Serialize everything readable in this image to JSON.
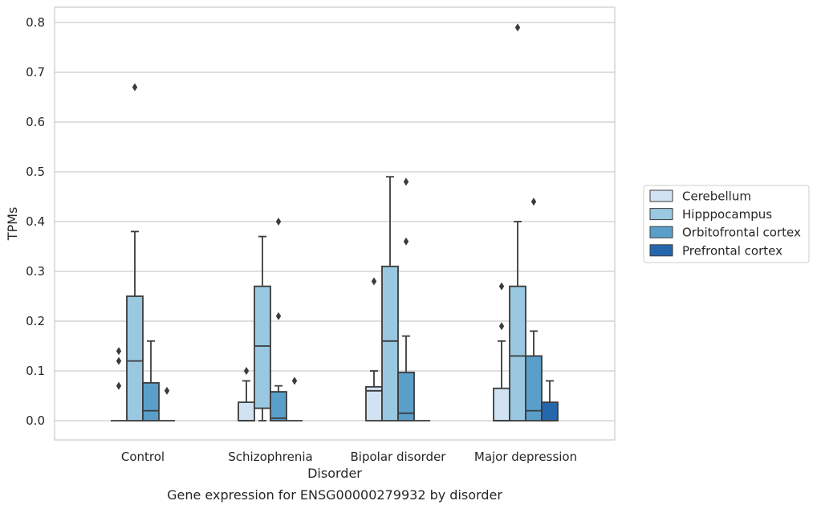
{
  "chart_data": {
    "type": "box",
    "title": "",
    "caption": "Gene expression for ENSG00000279932 by disorder",
    "xlabel": "Disorder",
    "ylabel": "TPMs",
    "ylim": [
      -0.04,
      0.83
    ],
    "yticks": [
      0.0,
      0.1,
      0.2,
      0.3,
      0.4,
      0.5,
      0.6,
      0.7,
      0.8
    ],
    "ytick_labels": [
      "0.0",
      "0.1",
      "0.2",
      "0.3",
      "0.4",
      "0.5",
      "0.6",
      "0.7",
      "0.8"
    ],
    "grid": "horizontal",
    "legend_position": "right",
    "categories": [
      "Control",
      "Schizophrenia",
      "Bipolar disorder",
      "Major depression"
    ],
    "series": [
      {
        "name": "Cerebellum",
        "color": "#d1e3f3",
        "boxes": [
          {
            "q1": 0.0,
            "median": 0.0,
            "q3": 0.0,
            "whisker_low": 0.0,
            "whisker_high": 0.0,
            "outliers": [
              0.07,
              0.12,
              0.14
            ]
          },
          {
            "q1": 0.0,
            "median": 0.0,
            "q3": 0.037,
            "whisker_low": 0.0,
            "whisker_high": 0.08,
            "outliers": [
              0.1
            ]
          },
          {
            "q1": 0.0,
            "median": 0.06,
            "q3": 0.068,
            "whisker_low": 0.0,
            "whisker_high": 0.1,
            "outliers": [
              0.28
            ]
          },
          {
            "q1": 0.0,
            "median": 0.0,
            "q3": 0.065,
            "whisker_low": 0.0,
            "whisker_high": 0.16,
            "outliers": [
              0.19,
              0.27
            ]
          }
        ]
      },
      {
        "name": "Hipppocampus",
        "color": "#9ac8e0",
        "boxes": [
          {
            "q1": 0.0,
            "median": 0.12,
            "q3": 0.25,
            "whisker_low": 0.0,
            "whisker_high": 0.38,
            "outliers": [
              0.67
            ]
          },
          {
            "q1": 0.025,
            "median": 0.15,
            "q3": 0.27,
            "whisker_low": 0.0,
            "whisker_high": 0.37,
            "outliers": []
          },
          {
            "q1": 0.0,
            "median": 0.16,
            "q3": 0.31,
            "whisker_low": 0.0,
            "whisker_high": 0.49,
            "outliers": []
          },
          {
            "q1": 0.0,
            "median": 0.13,
            "q3": 0.27,
            "whisker_low": 0.0,
            "whisker_high": 0.4,
            "outliers": [
              0.79
            ]
          }
        ]
      },
      {
        "name": "Orbitofrontal cortex",
        "color": "#5a9fca",
        "boxes": [
          {
            "q1": 0.0,
            "median": 0.02,
            "q3": 0.076,
            "whisker_low": 0.0,
            "whisker_high": 0.16,
            "outliers": []
          },
          {
            "q1": 0.0,
            "median": 0.005,
            "q3": 0.058,
            "whisker_low": 0.0,
            "whisker_high": 0.07,
            "outliers": [
              0.21,
              0.4
            ]
          },
          {
            "q1": 0.0,
            "median": 0.015,
            "q3": 0.097,
            "whisker_low": 0.0,
            "whisker_high": 0.17,
            "outliers": [
              0.36,
              0.48
            ]
          },
          {
            "q1": 0.0,
            "median": 0.02,
            "q3": 0.13,
            "whisker_low": 0.0,
            "whisker_high": 0.18,
            "outliers": [
              0.44
            ]
          }
        ]
      },
      {
        "name": "Prefrontal cortex",
        "color": "#2567ad",
        "boxes": [
          {
            "q1": 0.0,
            "median": 0.0,
            "q3": 0.0,
            "whisker_low": 0.0,
            "whisker_high": 0.0,
            "outliers": [
              0.06
            ]
          },
          {
            "q1": 0.0,
            "median": 0.0,
            "q3": 0.0,
            "whisker_low": 0.0,
            "whisker_high": 0.0,
            "outliers": [
              0.08
            ]
          },
          {
            "q1": 0.0,
            "median": 0.0,
            "q3": 0.0,
            "whisker_low": 0.0,
            "whisker_high": 0.0,
            "outliers": []
          },
          {
            "q1": 0.0,
            "median": 0.0,
            "q3": 0.037,
            "whisker_low": 0.0,
            "whisker_high": 0.08,
            "outliers": []
          }
        ]
      }
    ]
  }
}
